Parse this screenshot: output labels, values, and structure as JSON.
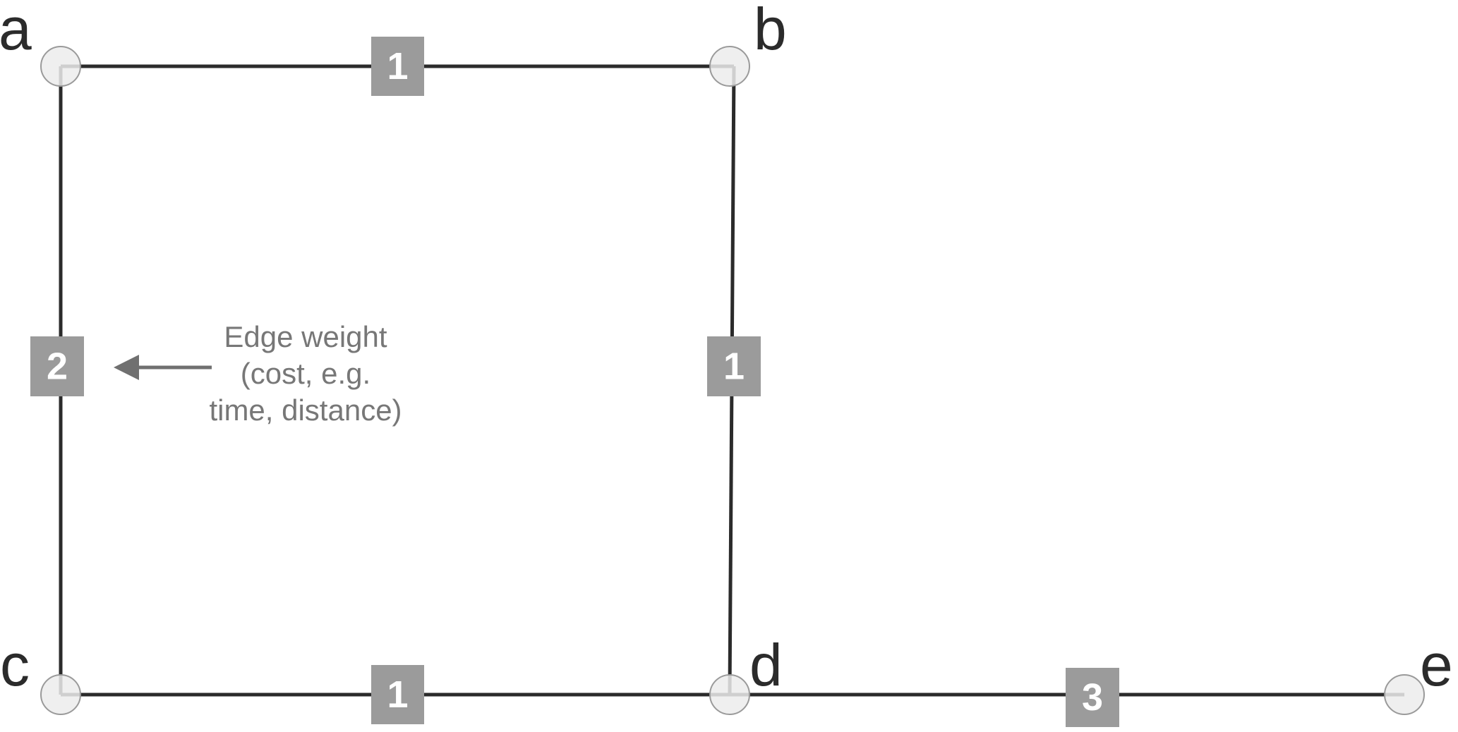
{
  "nodes": [
    {
      "id": "a",
      "label": "a"
    },
    {
      "id": "b",
      "label": "b"
    },
    {
      "id": "c",
      "label": "c"
    },
    {
      "id": "d",
      "label": "d"
    },
    {
      "id": "e",
      "label": "e"
    }
  ],
  "edges": [
    {
      "from": "a",
      "to": "b",
      "weight": "1"
    },
    {
      "from": "a",
      "to": "c",
      "weight": "2"
    },
    {
      "from": "b",
      "to": "d",
      "weight": "1"
    },
    {
      "from": "c",
      "to": "d",
      "weight": "1"
    },
    {
      "from": "d",
      "to": "e",
      "weight": "3"
    }
  ],
  "annotation": {
    "lines": [
      "Edge weight",
      "(cost, e.g.",
      "time, distance)"
    ]
  },
  "colors": {
    "edge": "#2b2b2b",
    "node_fill": "#ececec",
    "node_stroke": "#9a9a9a",
    "weight_box": "#9b9b9b",
    "weight_text": "#ffffff",
    "annotation": "#777777",
    "arrow": "#707070"
  }
}
